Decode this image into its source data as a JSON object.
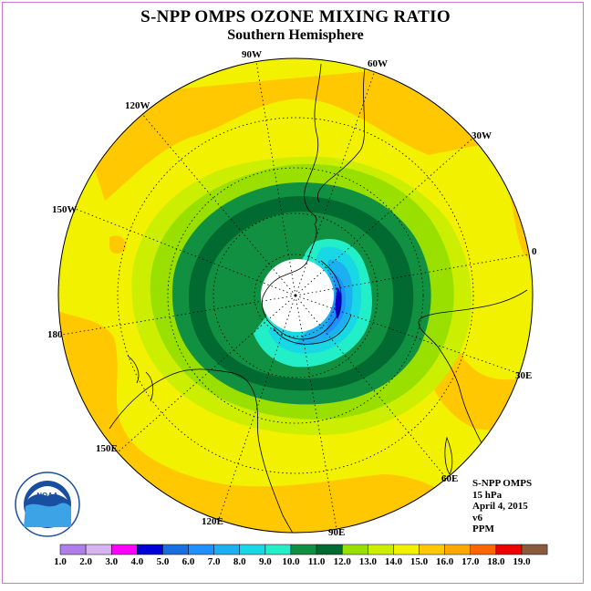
{
  "header": {
    "title": "S-NPP OMPS OZONE MIXING RATIO",
    "subtitle": "Southern Hemisphere"
  },
  "longitude_labels": [
    {
      "id": "90w",
      "text": "90W"
    },
    {
      "id": "60w",
      "text": "60W"
    },
    {
      "id": "30w",
      "text": "30W"
    },
    {
      "id": "0",
      "text": "0"
    },
    {
      "id": "30e",
      "text": "30E"
    },
    {
      "id": "60e",
      "text": "60E"
    },
    {
      "id": "90e",
      "text": "90E"
    },
    {
      "id": "120e",
      "text": "120E"
    },
    {
      "id": "150e",
      "text": "150E"
    },
    {
      "id": "180",
      "text": "180"
    },
    {
      "id": "150w",
      "text": "150W"
    },
    {
      "id": "120w",
      "text": "120W"
    }
  ],
  "info_block": {
    "instrument": "S-NPP OMPS",
    "pressure": "15 hPa",
    "date": "April 4, 2015",
    "version": "v6",
    "units": "PPM"
  },
  "logo": {
    "text": "NOAA",
    "ring_text": "NATIONAL OCEANIC AND ATMOSPHERIC ADMINISTRATION U.S. DEPARTMENT OF COMMERCE"
  },
  "color_scale": {
    "ticks": [
      "1.0",
      "2.0",
      "3.0",
      "4.0",
      "5.0",
      "6.0",
      "7.0",
      "8.0",
      "9.0",
      "10.0",
      "11.0",
      "12.0",
      "13.0",
      "14.0",
      "15.0",
      "16.0",
      "17.0",
      "18.0",
      "19.0"
    ],
    "colors": [
      "#b07ee8",
      "#d7b3f2",
      "#ff00ff",
      "#0000d8",
      "#1a6fe0",
      "#1e90ff",
      "#1cb0f0",
      "#19d8e6",
      "#22eec8",
      "#109040",
      "#006a30",
      "#99e000",
      "#ccee00",
      "#f2f200",
      "#ffc800",
      "#ffa800",
      "#ff6600",
      "#ee0000",
      "#8a5a3c"
    ]
  }
}
